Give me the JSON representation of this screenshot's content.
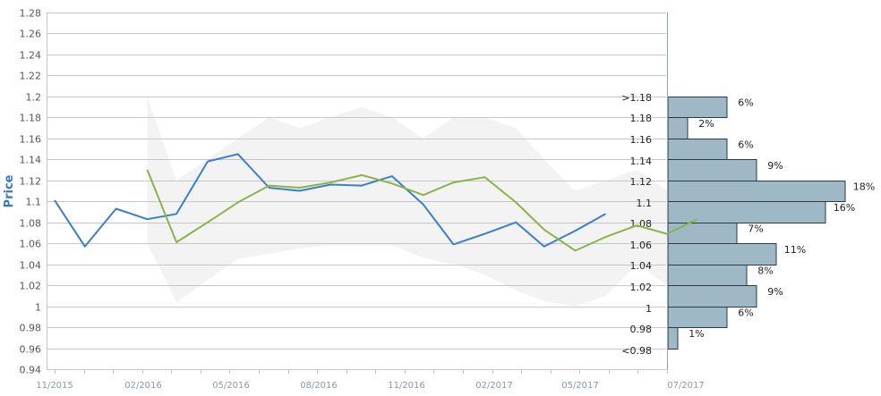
{
  "chart_data": {
    "type": "line",
    "ylabel": "Price",
    "ylim": [
      0.94,
      1.28
    ],
    "yticks": [
      "0.94",
      "0.96",
      "0.98",
      "1",
      "1.02",
      "1.04",
      "1.06",
      "1.08",
      "1.1",
      "1.12",
      "1.14",
      "1.16",
      "1.18",
      "1.2",
      "1.22",
      "1.24",
      "1.26",
      "1.28"
    ],
    "xticks": [
      "11/2015",
      "02/2016",
      "05/2016",
      "08/2016",
      "11/2016",
      "02/2017",
      "05/2017",
      "07/2017"
    ],
    "series": [
      {
        "name": "",
        "color": "#3a7fc9",
        "x": [
          "2015-11-01",
          "2015-12-01",
          "2016-01-01",
          "2016-02-01",
          "2016-03-01",
          "2016-04-01",
          "2016-05-01",
          "2016-06-01",
          "2016-07-01",
          "2016-08-01",
          "2016-09-01",
          "2016-10-01",
          "2016-11-01",
          "2016-12-01",
          "2017-01-01",
          "2017-02-01",
          "2017-03-01",
          "2017-04-01",
          "2017-05-01"
        ],
        "values": [
          1.101,
          1.057,
          1.093,
          1.083,
          1.088,
          1.138,
          1.145,
          1.113,
          1.11,
          1.116,
          1.115,
          1.124,
          1.097,
          1.059,
          1.069,
          1.08,
          1.057,
          1.072,
          1.088
        ]
      },
      {
        "name": "",
        "color": "#8ab44a",
        "x": [
          "2016-02-01",
          "2016-03-01",
          "2016-04-01",
          "2016-05-01",
          "2016-06-01",
          "2016-07-01",
          "2016-08-01",
          "2016-09-01",
          "2016-10-01",
          "2016-11-01",
          "2016-12-01",
          "2017-01-01",
          "2017-02-01",
          "2017-03-01",
          "2017-04-01",
          "2017-05-01",
          "2017-06-01",
          "2017-07-01",
          "2017-07-31"
        ],
        "values": [
          1.13,
          1.061,
          1.08,
          1.099,
          1.115,
          1.113,
          1.118,
          1.125,
          1.117,
          1.106,
          1.118,
          1.123,
          1.099,
          1.073,
          1.053,
          1.066,
          1.077,
          1.069,
          1.083
        ]
      }
    ],
    "band": {
      "color": "#f3f3f3",
      "x": [
        "2016-02-01",
        "2016-03-01",
        "2016-04-01",
        "2016-05-01",
        "2016-06-01",
        "2016-07-01",
        "2016-08-01",
        "2016-09-01",
        "2016-10-01",
        "2016-11-01",
        "2016-12-01",
        "2017-01-01",
        "2017-02-01",
        "2017-03-01",
        "2017-04-01",
        "2017-05-01",
        "2017-06-01",
        "2017-07-01",
        "2017-07-31"
      ],
      "upper": [
        1.2,
        1.12,
        1.14,
        1.16,
        1.18,
        1.17,
        1.18,
        1.19,
        1.18,
        1.16,
        1.18,
        1.18,
        1.17,
        1.14,
        1.11,
        1.12,
        1.13,
        1.11,
        1.14
      ],
      "lower": [
        1.06,
        1.004,
        1.025,
        1.045,
        1.05,
        1.055,
        1.058,
        1.058,
        1.058,
        1.046,
        1.04,
        1.03,
        1.015,
        1.005,
        1.0,
        1.01,
        1.04,
        1.02,
        1.01
      ]
    },
    "distribution": {
      "color": "#9fb8c6",
      "bins": [
        {
          "label": ">1.18",
          "low": 1.18,
          "high": 1.2,
          "pct": 6,
          "text": "6%"
        },
        {
          "label": "1.18",
          "low": 1.16,
          "high": 1.18,
          "pct": 2,
          "text": "2%"
        },
        {
          "label": "1.16",
          "low": 1.14,
          "high": 1.16,
          "pct": 6,
          "text": "6%"
        },
        {
          "label": "1.14",
          "low": 1.12,
          "high": 1.14,
          "pct": 9,
          "text": "9%"
        },
        {
          "label": "1.12",
          "low": 1.1,
          "high": 1.12,
          "pct": 18,
          "text": "18%"
        },
        {
          "label": "1.1",
          "low": 1.08,
          "high": 1.1,
          "pct": 16,
          "text": "16%"
        },
        {
          "label": "1.08",
          "low": 1.06,
          "high": 1.08,
          "pct": 7,
          "text": "7%"
        },
        {
          "label": "1.06",
          "low": 1.04,
          "high": 1.06,
          "pct": 11,
          "text": "11%"
        },
        {
          "label": "1.04",
          "low": 1.02,
          "high": 1.04,
          "pct": 8,
          "text": "8%"
        },
        {
          "label": "1.02",
          "low": 1.0,
          "high": 1.02,
          "pct": 9,
          "text": "9%"
        },
        {
          "label": "1",
          "low": 0.98,
          "high": 1.0,
          "pct": 6,
          "text": "6%"
        },
        {
          "label": "0.98",
          "low": 0.96,
          "high": 0.98,
          "pct": 1,
          "text": "1%"
        },
        {
          "label": "<0.98",
          "low": null,
          "high": null,
          "pct": null,
          "text": ""
        }
      ]
    },
    "grid": true
  }
}
